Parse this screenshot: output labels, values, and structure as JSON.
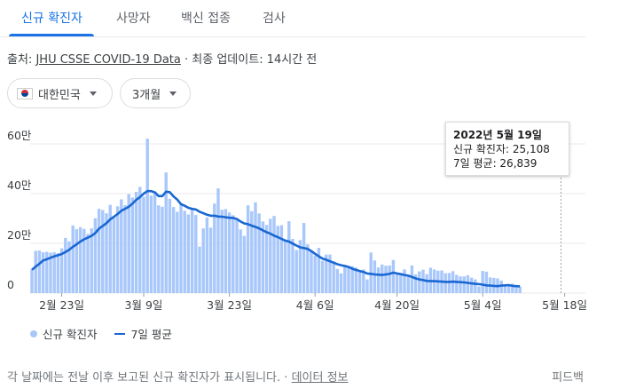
{
  "tabs": [
    {
      "label": "신규 확진자",
      "active": true
    },
    {
      "label": "사망자",
      "active": false
    },
    {
      "label": "백신 접종",
      "active": false
    },
    {
      "label": "검사",
      "active": false
    }
  ],
  "source": {
    "prefix": "출처:",
    "link": "JHU CSSE COVID-19 Data",
    "separator": "·",
    "updated": "최종 업데이트: 14시간 전"
  },
  "filters": {
    "country": "대한민국",
    "country_icon": "south-korea-flag-icon",
    "period": "3개월"
  },
  "tooltip": {
    "date": "2022년 5월 19일",
    "cases": "신규 확진자: 25,108",
    "average": "7일 평균: 26,839"
  },
  "legend": {
    "cases": "신규 확진자",
    "average": "7일 평균"
  },
  "footer": {
    "note": "각 날짜에는 전날 이후 보고된 신규 확진자가 표시됩니다.",
    "separator": "·",
    "link": "데이터 정보",
    "feedback": "피드백"
  },
  "colors": {
    "bar": "#a8c7fa",
    "bar_highlight": "#8ab4f8",
    "line": "#1967d2",
    "grid": "#e8eaed",
    "tab_active": "#1a73e8"
  },
  "chart_data": {
    "type": "bar",
    "series": [
      {
        "name": "신규 확진자",
        "type": "bar",
        "values": [
          96,
          170,
          171,
          164,
          166,
          162,
          164,
          160,
          180,
          222,
          208,
          272,
          257,
          265,
          258,
          238,
          260,
          301,
          339,
          334,
          321,
          355,
          309,
          349,
          377,
          354,
          398,
          384,
          407,
          427,
          387,
          621,
          392,
          401,
          353,
          347,
          485,
          379,
          346,
          327,
          355,
          331,
          316,
          337,
          314,
          187,
          260,
          304,
          263,
          360,
          421,
          335,
          338,
          324,
          313,
          293,
          256,
          230,
          353,
          329,
          365,
          320,
          288,
          274,
          299,
          310,
          270,
          273,
          209,
          289,
          218,
          173,
          213,
          282,
          196,
          168,
          151,
          182,
          130,
          155,
          155,
          128,
          97,
          79,
          113,
          103,
          108,
          103,
          91,
          95,
          55,
          163,
          131,
          103,
          115,
          110,
          111,
          133,
          82,
          72,
          95,
          67,
          111,
          75,
          87,
          94,
          76,
          102,
          95,
          90,
          91,
          80,
          81,
          88,
          73,
          67,
          67,
          72,
          62,
          55,
          27,
          89,
          86,
          63,
          61,
          59,
          50,
          32,
          35,
          38,
          26,
          25
        ]
      },
      {
        "name": "7일 평균",
        "type": "line",
        "values": [
          94,
          106,
          118,
          131,
          136,
          142,
          148,
          152,
          157,
          165,
          174,
          186,
          196,
          207,
          216,
          223,
          230,
          241,
          259,
          270,
          281,
          296,
          307,
          318,
          331,
          339,
          347,
          360,
          375,
          386,
          400,
          410,
          410,
          405,
          390,
          390,
          408,
          406,
          389,
          376,
          358,
          351,
          343,
          339,
          336,
          327,
          321,
          315,
          311,
          311,
          308,
          307,
          305,
          303,
          302,
          298,
          288,
          280,
          277,
          271,
          266,
          260,
          252,
          245,
          239,
          231,
          225,
          218,
          211,
          207,
          199,
          191,
          184,
          181,
          178,
          169,
          158,
          148,
          139,
          134,
          128,
          122,
          116,
          112,
          109,
          105,
          98,
          93,
          89,
          85,
          79,
          77,
          75,
          74,
          73,
          75,
          77,
          82,
          79,
          76,
          73,
          70,
          65,
          59,
          55,
          52,
          49,
          48,
          48,
          47,
          46,
          45,
          45,
          46,
          45,
          44,
          43,
          41,
          39,
          37,
          36,
          34,
          31,
          30,
          29,
          28,
          30,
          31,
          32,
          29,
          28,
          27
        ]
      }
    ],
    "x_tick_labels": [
      "2월 23일",
      "3월 9일",
      "3월 23일",
      "4월 6일",
      "4월 20일",
      "5월 4일",
      "5월 18일"
    ],
    "x_tick_index": [
      8,
      30,
      53,
      76,
      98,
      121,
      143
    ],
    "y_tick_labels": [
      "0",
      "20만",
      "40만",
      "60만"
    ],
    "y_ticks": [
      0,
      200000,
      400000,
      600000
    ],
    "ylim": [
      0,
      640000
    ],
    "value_scale": 1000,
    "highlight_index": 142,
    "grid": true,
    "legend_position": "bottom-left"
  }
}
